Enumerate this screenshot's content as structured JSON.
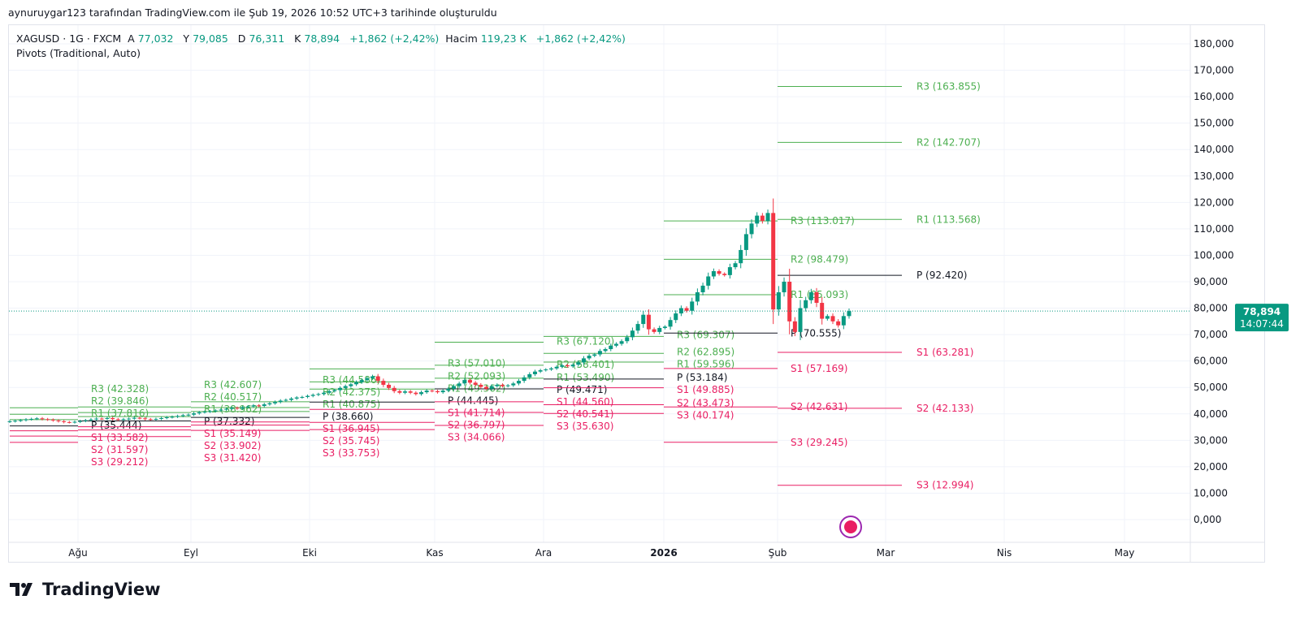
{
  "credit": "aynuruygar123 tarafından TradingView.com ile Şub 19, 2026 10:52 UTC+3 tarihinde oluşturuldu",
  "legend": {
    "symbol": "XAGUSD · 1G · FXCM",
    "open_label": "A",
    "open": "77,032",
    "high_label": "Y",
    "high": "79,085",
    "low_label": "D",
    "low": "76,311",
    "close_label": "K",
    "close": "78,894",
    "change": "+1,862 (+2,42%)",
    "volume_label": "Hacim",
    "volume": "119,23 K",
    "volume_change": "+1,862 (+2,42%)",
    "indicator": "Pivots (Traditional, Auto)"
  },
  "price_badge": {
    "price": "78,894",
    "countdown": "14:07:44",
    "color": "#089981"
  },
  "logo": "TradingView",
  "colors": {
    "up": "#089981",
    "down": "#f23645",
    "resistance": "#4caf50",
    "support": "#e91e63",
    "pivot": "#131722",
    "grid": "#f0f3fa"
  },
  "chart_data": {
    "type": "candlestick",
    "title": "XAGUSD · 1G · FXCM",
    "ylim": [
      -5,
      185
    ],
    "y_ticks": [
      "0,000",
      "10,000",
      "20,000",
      "30,000",
      "40,000",
      "50,000",
      "60,000",
      "70,000",
      "80,000",
      "90,000",
      "100,000",
      "110,000",
      "120,000",
      "130,000",
      "140,000",
      "150,000",
      "160,000",
      "170,000",
      "180,000"
    ],
    "y_tick_values": [
      0,
      10,
      20,
      30,
      40,
      50,
      60,
      70,
      80,
      90,
      100,
      110,
      120,
      130,
      140,
      150,
      160,
      170,
      180
    ],
    "x_ticks": [
      "Ağu",
      "Eyl",
      "Eki",
      "Kas",
      "Ara",
      "2026",
      "Şub",
      "Mar",
      "Nis",
      "May"
    ],
    "first_open": 37.0,
    "closes": [
      37.2,
      37.4,
      37.6,
      37.9,
      38.1,
      38.3,
      38.0,
      37.8,
      37.5,
      37.2,
      36.9,
      36.8,
      37.0,
      37.3,
      37.6,
      37.9,
      38.2,
      38.1,
      38.4,
      38.0,
      37.8,
      38.0,
      38.2,
      38.5,
      38.3,
      38.0,
      37.9,
      38.1,
      38.4,
      38.7,
      38.9,
      39.2,
      39.5,
      39.7,
      40.2,
      40.6,
      40.8,
      41.0,
      41.3,
      41.6,
      41.9,
      42.3,
      42.0,
      42.5,
      42.8,
      43.2,
      43.0,
      43.6,
      44.0,
      44.5,
      45.0,
      45.3,
      45.8,
      46.2,
      46.4,
      46.8,
      47.2,
      47.5,
      48.0,
      48.6,
      49.0,
      49.8,
      50.5,
      51.2,
      52.0,
      52.8,
      53.5,
      54.2,
      52.5,
      51.0,
      49.8,
      48.6,
      48.0,
      48.5,
      48.0,
      47.5,
      48.2,
      48.8,
      48.6,
      48.2,
      48.8,
      49.5,
      50.5,
      51.5,
      52.8,
      51.8,
      51.0,
      50.2,
      49.5,
      50.5,
      51.0,
      50.5,
      50.8,
      51.5,
      52.5,
      53.8,
      55.0,
      56.0,
      56.5,
      56.8,
      57.2,
      57.8,
      58.4,
      58.0,
      58.6,
      59.5,
      61.0,
      62.0,
      62.5,
      63.8,
      64.5,
      65.8,
      66.5,
      67.5,
      69.0,
      71.5,
      74.0,
      77.5,
      72.0,
      71.0,
      72.5,
      73.0,
      75.5,
      78.0,
      80.0,
      79.0,
      82.5,
      86.0,
      88.5,
      92.0,
      94.0,
      93.0,
      92.5,
      95.5,
      97.0,
      102.0,
      108.0,
      112.0,
      115.0,
      113.0,
      116.0,
      79.5,
      86.0,
      90.0,
      75.0,
      71.0,
      80.0,
      83.0,
      86.0,
      82.0,
      76.0,
      77.0,
      75.0,
      73.5,
      77.0,
      78.894
    ],
    "last_price": 78.894,
    "pivot_periods": [
      {
        "levels": [
          "R3",
          "R2",
          "R1",
          "P",
          "S1",
          "S2",
          "S3"
        ],
        "values": [
          42.328,
          39.846,
          37.816,
          35.444,
          33.582,
          31.597,
          29.212
        ],
        "labels": [
          "R3 (42.328)",
          "R2 (39.846)",
          "R1 (37.816)",
          "P (35.444)",
          "S1 (33.582)",
          "S2 (31.597)",
          "S3 (29.212)"
        ]
      },
      {
        "levels": [
          "R3",
          "R2",
          "R1",
          "P",
          "S1",
          "S2",
          "S3"
        ],
        "values": [
          42.607,
          40.517,
          38.962,
          37.332,
          35.149,
          33.902,
          31.42
        ],
        "labels": [
          "R3 (42.607)",
          "R2 (40.517)",
          "R1 (38.962)",
          "P (37.332)",
          "S1 (35.149)",
          "S2 (33.902)",
          "S3 (31.420)"
        ]
      },
      {
        "levels": [
          "R3",
          "R2",
          "R1",
          "P",
          "S1",
          "S2",
          "S3"
        ],
        "values": [
          44.586,
          42.375,
          40.875,
          38.66,
          36.945,
          35.745,
          33.753
        ],
        "labels": [
          "R3 (44.586)",
          "R2 (42.375)",
          "R1 (40.875)",
          "P (38.660)",
          "S1 (36.945)",
          "S2 (35.745)",
          "S3 (33.753)"
        ]
      },
      {
        "levels": [
          "R3",
          "R2",
          "R1",
          "P",
          "S1",
          "S2",
          "S3"
        ],
        "values": [
          57.01,
          52.093,
          49.362,
          44.445,
          41.714,
          36.797,
          34.066
        ],
        "labels": [
          "R3 (57.010)",
          "R2 (52.093)",
          "R1 (49.362)",
          "P (44.445)",
          "S1 (41.714)",
          "S2 (36.797)",
          "S3 (34.066)"
        ]
      },
      {
        "levels": [
          "R3",
          "R2",
          "R1",
          "P",
          "S1",
          "S2",
          "S3"
        ],
        "values": [
          67.12,
          58.401,
          53.49,
          49.471,
          44.56,
          40.541,
          35.63
        ],
        "labels": [
          "R3 (67.120)",
          "R2 (58.401)",
          "R1 (53.490)",
          "P (49.471)",
          "S1 (44.560)",
          "S2 (40.541)",
          "S3 (35.630)"
        ]
      },
      {
        "levels": [
          "R3",
          "R2",
          "R1",
          "P",
          "S1",
          "S2",
          "S3"
        ],
        "values": [
          69.307,
          62.895,
          59.596,
          53.184,
          49.885,
          43.473,
          40.174
        ],
        "labels": [
          "R3 (69.307)",
          "R2 (62.895)",
          "R1 (59.596)",
          "P (53.184)",
          "S1 (49.885)",
          "S2 (43.473)",
          "S3 (40.174)"
        ]
      },
      {
        "levels": [
          "R3",
          "R2",
          "R1",
          "P",
          "S1",
          "S2",
          "S3"
        ],
        "values": [
          113.017,
          98.479,
          85.093,
          70.555,
          57.169,
          42.631,
          29.245
        ],
        "labels": [
          "R3 (113.017)",
          "R2 (98.479)",
          "R1 (85.093)",
          "P (70.555)",
          "S1 (57.169)",
          "S2 (42.631)",
          "S3 (29.245)"
        ]
      },
      {
        "levels": [
          "R3",
          "R2",
          "R1",
          "P",
          "S1",
          "S2",
          "S3"
        ],
        "values": [
          163.855,
          142.707,
          113.568,
          92.42,
          63.281,
          42.133,
          12.994
        ],
        "labels": [
          "R3 (163.855)",
          "R2 (142.707)",
          "R1 (113.568)",
          "P (92.420)",
          "S1 (63.281)",
          "S2 (42.133)",
          "S3 (12.994)"
        ]
      }
    ]
  }
}
